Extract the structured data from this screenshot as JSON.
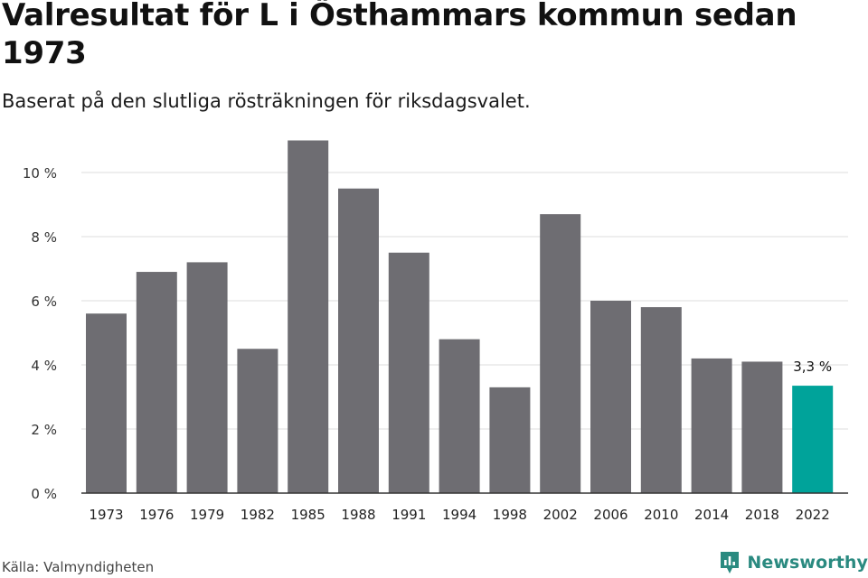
{
  "title": "Valresultat för L i Östhammars kommun sedan 1973",
  "subtitle": "Baserat på den slutliga rösträkningen för riksdagsvalet.",
  "source": "Källa: Valmyndigheten",
  "brand": {
    "name": "Newsworthy",
    "logo_icon": "newsworthy-logo-icon",
    "color": "#2a8a80"
  },
  "chart_data": {
    "type": "bar",
    "title": "Valresultat för L i Östhammars kommun sedan 1973",
    "subtitle": "Baserat på den slutliga rösträkningen för riksdagsvalet.",
    "categories": [
      "1973",
      "1976",
      "1979",
      "1982",
      "1985",
      "1988",
      "1991",
      "1994",
      "1998",
      "2002",
      "2006",
      "2010",
      "2014",
      "2018",
      "2022"
    ],
    "values": [
      5.6,
      6.9,
      7.2,
      4.5,
      11.0,
      9.5,
      7.5,
      4.8,
      3.3,
      8.7,
      6.0,
      5.8,
      4.2,
      4.1,
      3.35
    ],
    "ylim": [
      0,
      11
    ],
    "yticks": [
      0,
      2,
      4,
      6,
      8,
      10
    ],
    "ytick_labels": [
      "0 %",
      "2 %",
      "4 %",
      "6 %",
      "8 %",
      "10 %"
    ],
    "grid": true,
    "colors": {
      "bar": "#6e6d72",
      "highlight": "#00a39a",
      "grid": "#dddddd",
      "axis": "#333333"
    },
    "highlight_index": 14,
    "annotations": [
      {
        "index": 14,
        "text": "3,3 %"
      }
    ]
  }
}
